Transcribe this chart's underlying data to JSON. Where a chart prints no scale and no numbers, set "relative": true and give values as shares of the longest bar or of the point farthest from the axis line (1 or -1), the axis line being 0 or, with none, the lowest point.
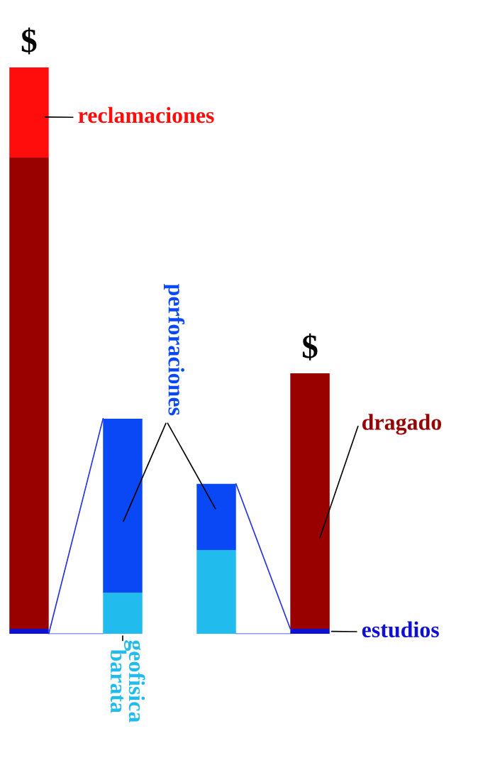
{
  "chart_data": {
    "type": "bar",
    "stacked": true,
    "relative": true,
    "categories": [
      null,
      null,
      null,
      null
    ],
    "series": [
      {
        "name": "estudios",
        "color": "#1010d0",
        "values": [
          0.009,
          null,
          null,
          0.009
        ]
      },
      {
        "name": "geofisica\nbarata",
        "color": "#22bbee",
        "values": [
          null,
          0.073,
          null,
          null
        ]
      },
      {
        "color": "#22bbee",
        "values": [
          null,
          null,
          0.148,
          null
        ]
      },
      {
        "name": "perforaciones",
        "color": "#0a48f5",
        "values": [
          null,
          0.307,
          0.117,
          null
        ]
      },
      {
        "name": "dragado",
        "color": "#990000",
        "values": [
          0.832,
          null,
          null,
          0.451
        ]
      },
      {
        "name": "reclamaciones",
        "color": "#ff0c0c",
        "values": [
          0.159,
          null,
          null,
          null
        ]
      }
    ],
    "annotations": [
      "$",
      "$"
    ],
    "legend": false
  }
}
